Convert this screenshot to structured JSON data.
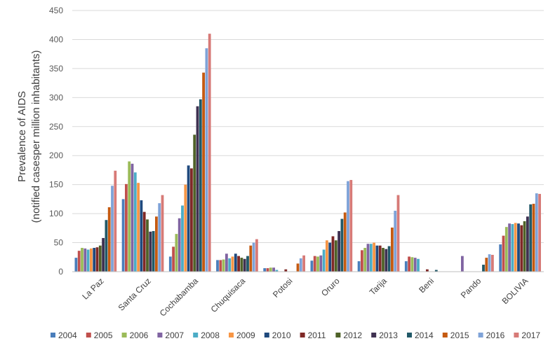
{
  "chart_data": {
    "type": "bar",
    "ylabel": "Prevalence of AIDS\n(notified casesper million inhabitants)",
    "xlabel": "",
    "ylim": [
      0,
      450
    ],
    "yticks": [
      0,
      50,
      100,
      150,
      200,
      250,
      300,
      350,
      400,
      450
    ],
    "grid": true,
    "legend_position": "bottom",
    "categories": [
      "La Paz",
      "Santa Cruz",
      "Cochabamba",
      "Chuquisaca",
      "Potosi",
      "Oruro",
      "Tarija",
      "Beni",
      "Pando",
      "BOLIVIA"
    ],
    "series": [
      {
        "name": "2004",
        "color": "#4a7ebb",
        "values": [
          24,
          125,
          26,
          20,
          6,
          19,
          18,
          18,
          0,
          47
        ]
      },
      {
        "name": "2005",
        "color": "#c0504d",
        "values": [
          36,
          151,
          43,
          20,
          6,
          27,
          37,
          26,
          0,
          62
        ]
      },
      {
        "name": "2006",
        "color": "#9bbb59",
        "values": [
          41,
          190,
          65,
          21,
          7,
          26,
          41,
          25,
          0,
          77
        ]
      },
      {
        "name": "2007",
        "color": "#8064a2",
        "values": [
          40,
          186,
          92,
          31,
          7,
          28,
          48,
          24,
          27,
          83
        ]
      },
      {
        "name": "2008",
        "color": "#4bacc6",
        "values": [
          38,
          171,
          114,
          23,
          3,
          38,
          48,
          22,
          0,
          82
        ]
      },
      {
        "name": "2009",
        "color": "#f79646",
        "values": [
          40,
          153,
          150,
          26,
          0,
          54,
          50,
          0,
          0,
          84
        ]
      },
      {
        "name": "2010",
        "color": "#1f497d",
        "values": [
          41,
          123,
          183,
          31,
          0,
          50,
          45,
          0,
          0,
          83
        ]
      },
      {
        "name": "2011",
        "color": "#7f2826",
        "values": [
          42,
          103,
          178,
          27,
          4,
          61,
          45,
          4,
          0,
          80
        ]
      },
      {
        "name": "2012",
        "color": "#4f6228",
        "values": [
          45,
          90,
          236,
          24,
          0,
          54,
          41,
          0,
          0,
          87
        ]
      },
      {
        "name": "2013",
        "color": "#3f3151",
        "values": [
          58,
          69,
          285,
          22,
          0,
          70,
          39,
          0,
          0,
          95
        ]
      },
      {
        "name": "2014",
        "color": "#215968",
        "values": [
          89,
          70,
          297,
          27,
          0,
          91,
          44,
          3,
          12,
          116
        ]
      },
      {
        "name": "2015",
        "color": "#c55a11",
        "values": [
          111,
          95,
          343,
          45,
          14,
          102,
          76,
          0,
          24,
          117
        ]
      },
      {
        "name": "2016",
        "color": "#7fa3d8",
        "values": [
          148,
          118,
          385,
          50,
          23,
          156,
          105,
          0,
          30,
          135
        ]
      },
      {
        "name": "2017",
        "color": "#d77a77",
        "values": [
          174,
          132,
          410,
          56,
          28,
          158,
          132,
          0,
          29,
          134
        ]
      }
    ]
  }
}
